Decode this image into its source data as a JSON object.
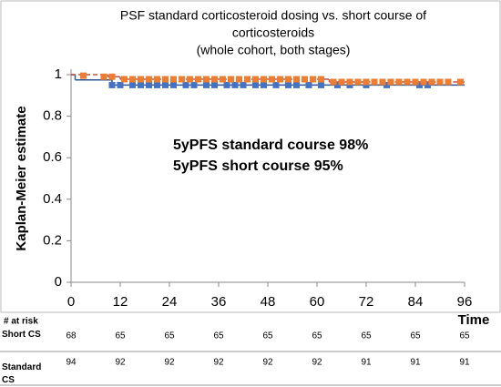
{
  "chart_data": {
    "type": "km",
    "title_lines": [
      "PSF standard corticosteroid dosing vs. short course of",
      "corticosteroids",
      "(whole cohort, both stages)"
    ],
    "ylabel": "Kaplan-Meier estimate",
    "xlabel": "Time",
    "xlim": [
      0,
      96
    ],
    "xticks": [
      0,
      12,
      24,
      36,
      48,
      60,
      72,
      84,
      96
    ],
    "ylim": [
      0,
      1
    ],
    "yticks": [
      0,
      0.2,
      0.4,
      0.6,
      0.8,
      1
    ],
    "annotations": [
      {
        "text": "5yPFS standard course 98%",
        "color": "#ed7d31"
      },
      {
        "text": "5yPFS short course 95%",
        "color": "#4472c4"
      }
    ],
    "series": [
      {
        "name": "Short CS",
        "color": "#4472c4",
        "line_color": "#2f5597",
        "dashed": false,
        "x": [
          0,
          1,
          10
        ],
        "values": [
          1,
          0.975,
          0.95
        ],
        "censor_x": [
          10,
          12,
          15,
          17,
          19,
          21,
          23,
          25,
          28,
          30,
          33,
          35,
          38,
          40,
          42,
          45,
          47,
          50,
          53,
          55,
          58,
          61,
          65,
          68,
          72,
          77,
          85,
          87
        ],
        "censor_values": [
          0.95,
          0.95,
          0.95,
          0.95,
          0.95,
          0.95,
          0.95,
          0.95,
          0.95,
          0.95,
          0.95,
          0.95,
          0.95,
          0.95,
          0.95,
          0.95,
          0.95,
          0.95,
          0.95,
          0.95,
          0.95,
          0.95,
          0.95,
          0.95,
          0.95,
          0.95,
          0.95,
          0.95
        ],
        "at_risk": [
          68,
          65,
          65,
          65,
          65,
          65,
          65,
          65,
          65
        ]
      },
      {
        "name": "Standard CS",
        "color": "#ed7d31",
        "line_color": "#c0504d",
        "dashed": true,
        "x": [
          0,
          9,
          12,
          63
        ],
        "values": [
          1,
          0.99,
          0.978,
          0.965
        ],
        "censor_x": [
          3,
          8,
          10,
          13,
          15,
          17,
          19,
          21,
          23,
          25,
          27,
          29,
          31,
          33,
          35,
          37,
          39,
          41,
          43,
          45,
          47,
          49,
          51,
          53,
          55,
          57,
          59,
          61,
          64,
          66,
          68,
          70,
          72,
          74,
          76,
          78,
          80,
          82,
          84,
          86,
          88,
          90,
          92,
          95
        ],
        "censor_values": [
          0.995,
          0.99,
          0.99,
          0.978,
          0.978,
          0.978,
          0.978,
          0.978,
          0.978,
          0.978,
          0.978,
          0.978,
          0.978,
          0.978,
          0.978,
          0.978,
          0.978,
          0.978,
          0.978,
          0.978,
          0.978,
          0.978,
          0.978,
          0.978,
          0.978,
          0.978,
          0.978,
          0.978,
          0.965,
          0.965,
          0.965,
          0.965,
          0.965,
          0.965,
          0.965,
          0.965,
          0.965,
          0.965,
          0.965,
          0.965,
          0.965,
          0.965,
          0.965,
          0.965
        ],
        "at_risk": [
          94,
          92,
          92,
          92,
          92,
          92,
          91,
          91,
          91
        ]
      }
    ],
    "at_risk_label": "# at risk"
  }
}
